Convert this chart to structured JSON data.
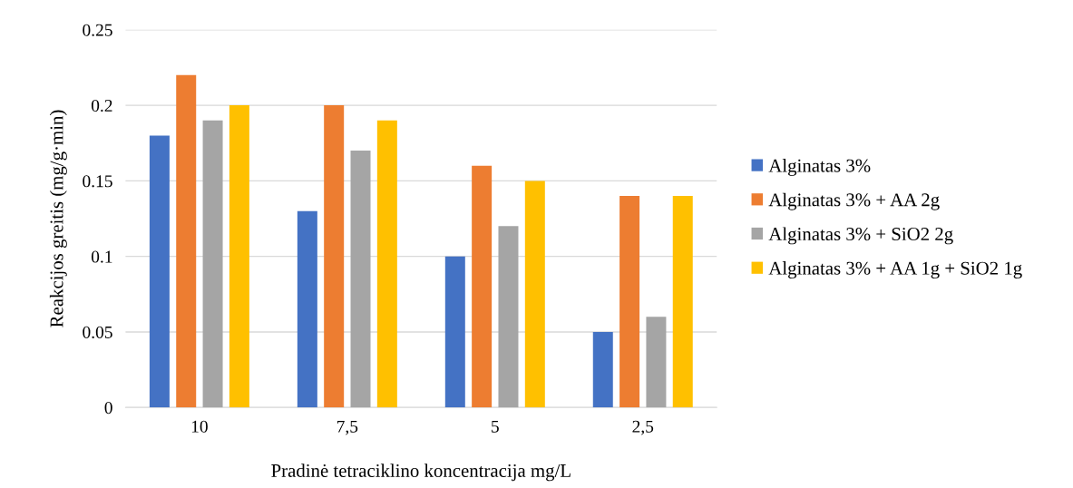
{
  "chart_data": {
    "type": "bar",
    "xlabel": "Pradinė tetraciklino koncentracija mg/L",
    "ylabel": "Reakcijos greitis (mg/g·min)",
    "categories": [
      "10",
      "7,5",
      "5",
      "2,5"
    ],
    "series": [
      {
        "name": "Alginatas 3%",
        "color": "#4472c4",
        "values": [
          0.18,
          0.13,
          0.1,
          0.05
        ]
      },
      {
        "name": "Alginatas 3% + AA 2g",
        "color": "#ed7d31",
        "values": [
          0.22,
          0.2,
          0.16,
          0.14
        ]
      },
      {
        "name": "Alginatas 3% + SiO2 2g",
        "color": "#a5a5a5",
        "values": [
          0.19,
          0.17,
          0.12,
          0.06
        ]
      },
      {
        "name": "Alginatas 3% + AA 1g + SiO2 1g",
        "color": "#ffc000",
        "values": [
          0.2,
          0.19,
          0.15,
          0.14
        ]
      }
    ],
    "ylim": [
      0,
      0.25
    ],
    "yticks": [
      0,
      0.05,
      0.1,
      0.15,
      0.2,
      0.25
    ],
    "grid": "y",
    "legend": "right"
  }
}
